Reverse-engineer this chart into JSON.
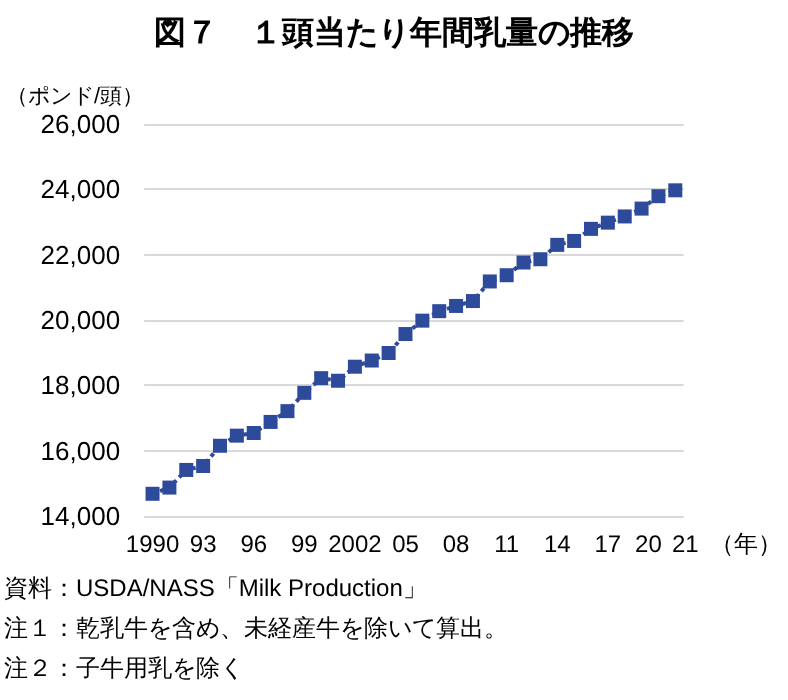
{
  "chart_data": {
    "type": "line",
    "title": "図７　１頭当たり年間乳量の推移",
    "ylabel": "（ポンド/頭）",
    "xlabel": "（年）",
    "categories": [
      "1990",
      null,
      null,
      "93",
      null,
      null,
      "96",
      null,
      null,
      "99",
      null,
      null,
      "2002",
      null,
      null,
      "05",
      null,
      null,
      "08",
      null,
      null,
      "11",
      null,
      null,
      "14",
      null,
      null,
      "17",
      null,
      null,
      "20",
      "21"
    ],
    "series": [
      {
        "color": "#2e4a9a",
        "values": [
          14680,
          14870,
          15410,
          15530,
          16150,
          16460,
          16540,
          16880,
          17210,
          17770,
          18220,
          18140,
          18570,
          18760,
          18990,
          19570,
          19980,
          20270,
          20430,
          20580,
          21180,
          21370,
          21760,
          21860,
          22300,
          22420,
          22790,
          22980,
          23170,
          23410,
          23790,
          23970
        ]
      }
    ],
    "ylim": [
      14000,
      26000
    ],
    "yticks": [
      {
        "value": 14000,
        "label": "14,000"
      },
      {
        "value": 16000,
        "label": "16,000"
      },
      {
        "value": 18000,
        "label": "18,000"
      },
      {
        "value": 20000,
        "label": "20,000"
      },
      {
        "value": 22000,
        "label": "22,000"
      },
      {
        "value": 24000,
        "label": "24,000"
      },
      {
        "value": 26000,
        "label": "26,000"
      }
    ],
    "grid": "y",
    "marker": "square",
    "line_style": "dotted",
    "annotations": [
      "資料：USDA/NASS「Milk Production」",
      "注１：乾乳牛を含め、未経産牛を除いて算出。",
      "注２：子牛用乳を除く"
    ]
  }
}
